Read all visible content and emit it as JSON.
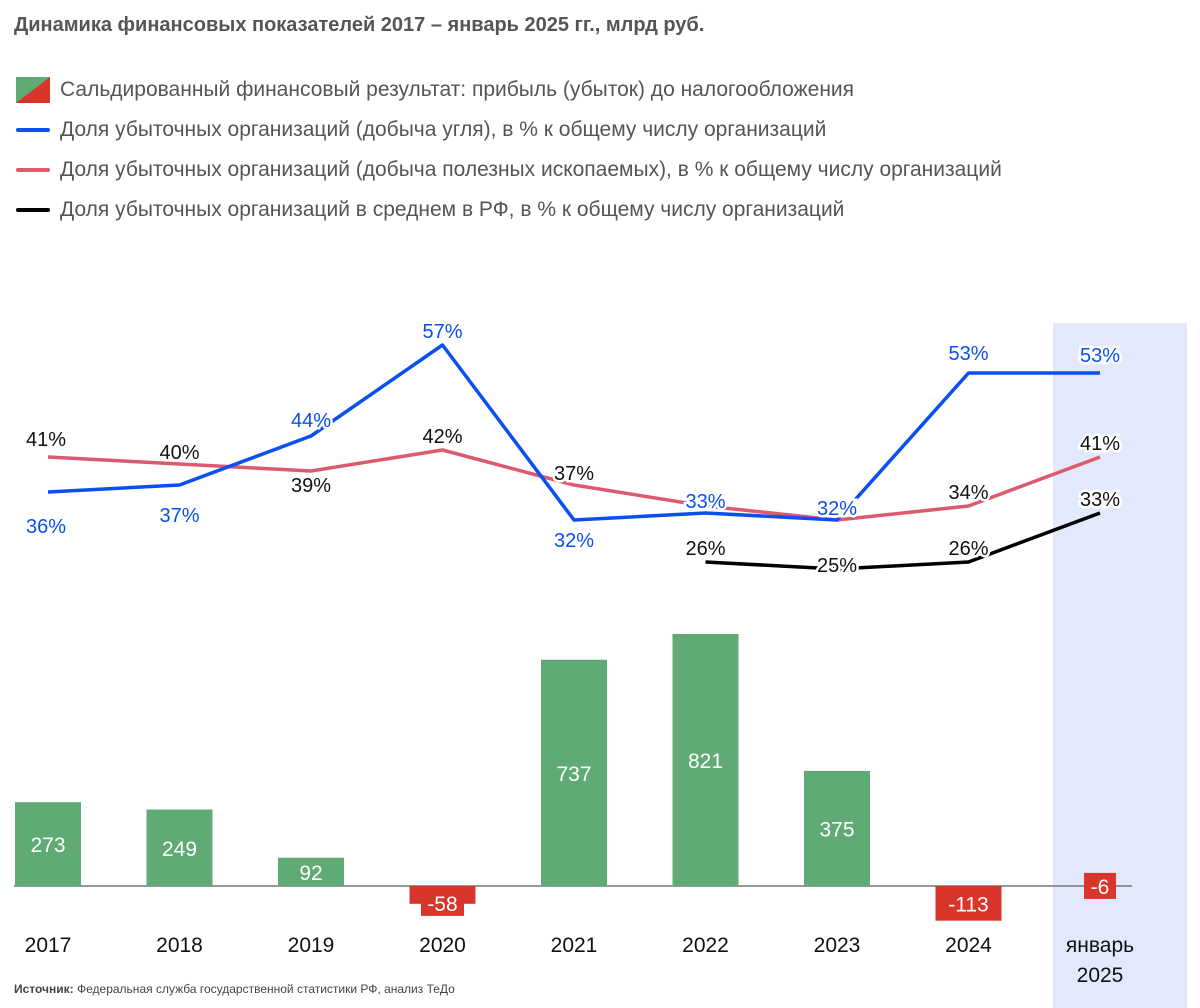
{
  "title": "Динамика финансовых показателей 2017 – январь 2025 гг., млрд руб.",
  "legend": [
    {
      "label": "Сальдированный финансовый результат: прибыль (убыток) до налогообложения",
      "kind": "bar"
    },
    {
      "label": "Доля убыточных организаций (добыча угля), в % к общему числу организаций",
      "kind": "line",
      "color": "#0a4ff0"
    },
    {
      "label": "Доля убыточных организаций (добыча полезных ископаемых), в % к общему числу организаций",
      "kind": "line",
      "color": "#dc5a6e"
    },
    {
      "label": "Доля убыточных организаций в среднем в РФ, в % к общему числу организаций",
      "kind": "line",
      "color": "#000000"
    }
  ],
  "source": {
    "label": "Источник:",
    "text": "Федеральная служба государственной статистики РФ, анализ ТеДо"
  },
  "chart_data": {
    "type": "bar+line",
    "categories": [
      "2017",
      "2018",
      "2019",
      "2020",
      "2021",
      "2022",
      "2023",
      "2024",
      "январь 2025"
    ],
    "highlighted_category": "январь 2025",
    "highlight_color": "#e3e9fc",
    "bars": {
      "name": "Сальдированный финансовый результат: прибыль (убыток) до налогообложения",
      "values": [
        273,
        249,
        92,
        -58,
        737,
        821,
        375,
        -113,
        -6
      ],
      "positive_color": "#5faa75",
      "negative_color": "#d9362b"
    },
    "series": [
      {
        "name": "Доля убыточных организаций (добыча угля), в % к общему числу организаций",
        "color": "#0a4ff0",
        "values": [
          36,
          37,
          44,
          57,
          32,
          33,
          32,
          53,
          53
        ],
        "labeled": [
          true,
          true,
          true,
          true,
          true,
          true,
          true,
          true,
          true
        ]
      },
      {
        "name": "Доля убыточных организаций (добыча полезных ископаемых), в % к общему числу организаций",
        "color": "#dc5a6e",
        "values": [
          41,
          40,
          39,
          42,
          37,
          34,
          32,
          34,
          41
        ],
        "labeled": [
          true,
          true,
          true,
          true,
          true,
          false,
          false,
          true,
          true
        ]
      },
      {
        "name": "Доля убыточных организаций в среднем в РФ, в % к общему числу организаций",
        "color": "#000000",
        "values": [
          null,
          null,
          null,
          null,
          null,
          26,
          25,
          26,
          33
        ],
        "labeled": [
          false,
          false,
          false,
          false,
          false,
          true,
          true,
          true,
          true
        ]
      }
    ],
    "value_suffix": "%",
    "grid": false
  }
}
